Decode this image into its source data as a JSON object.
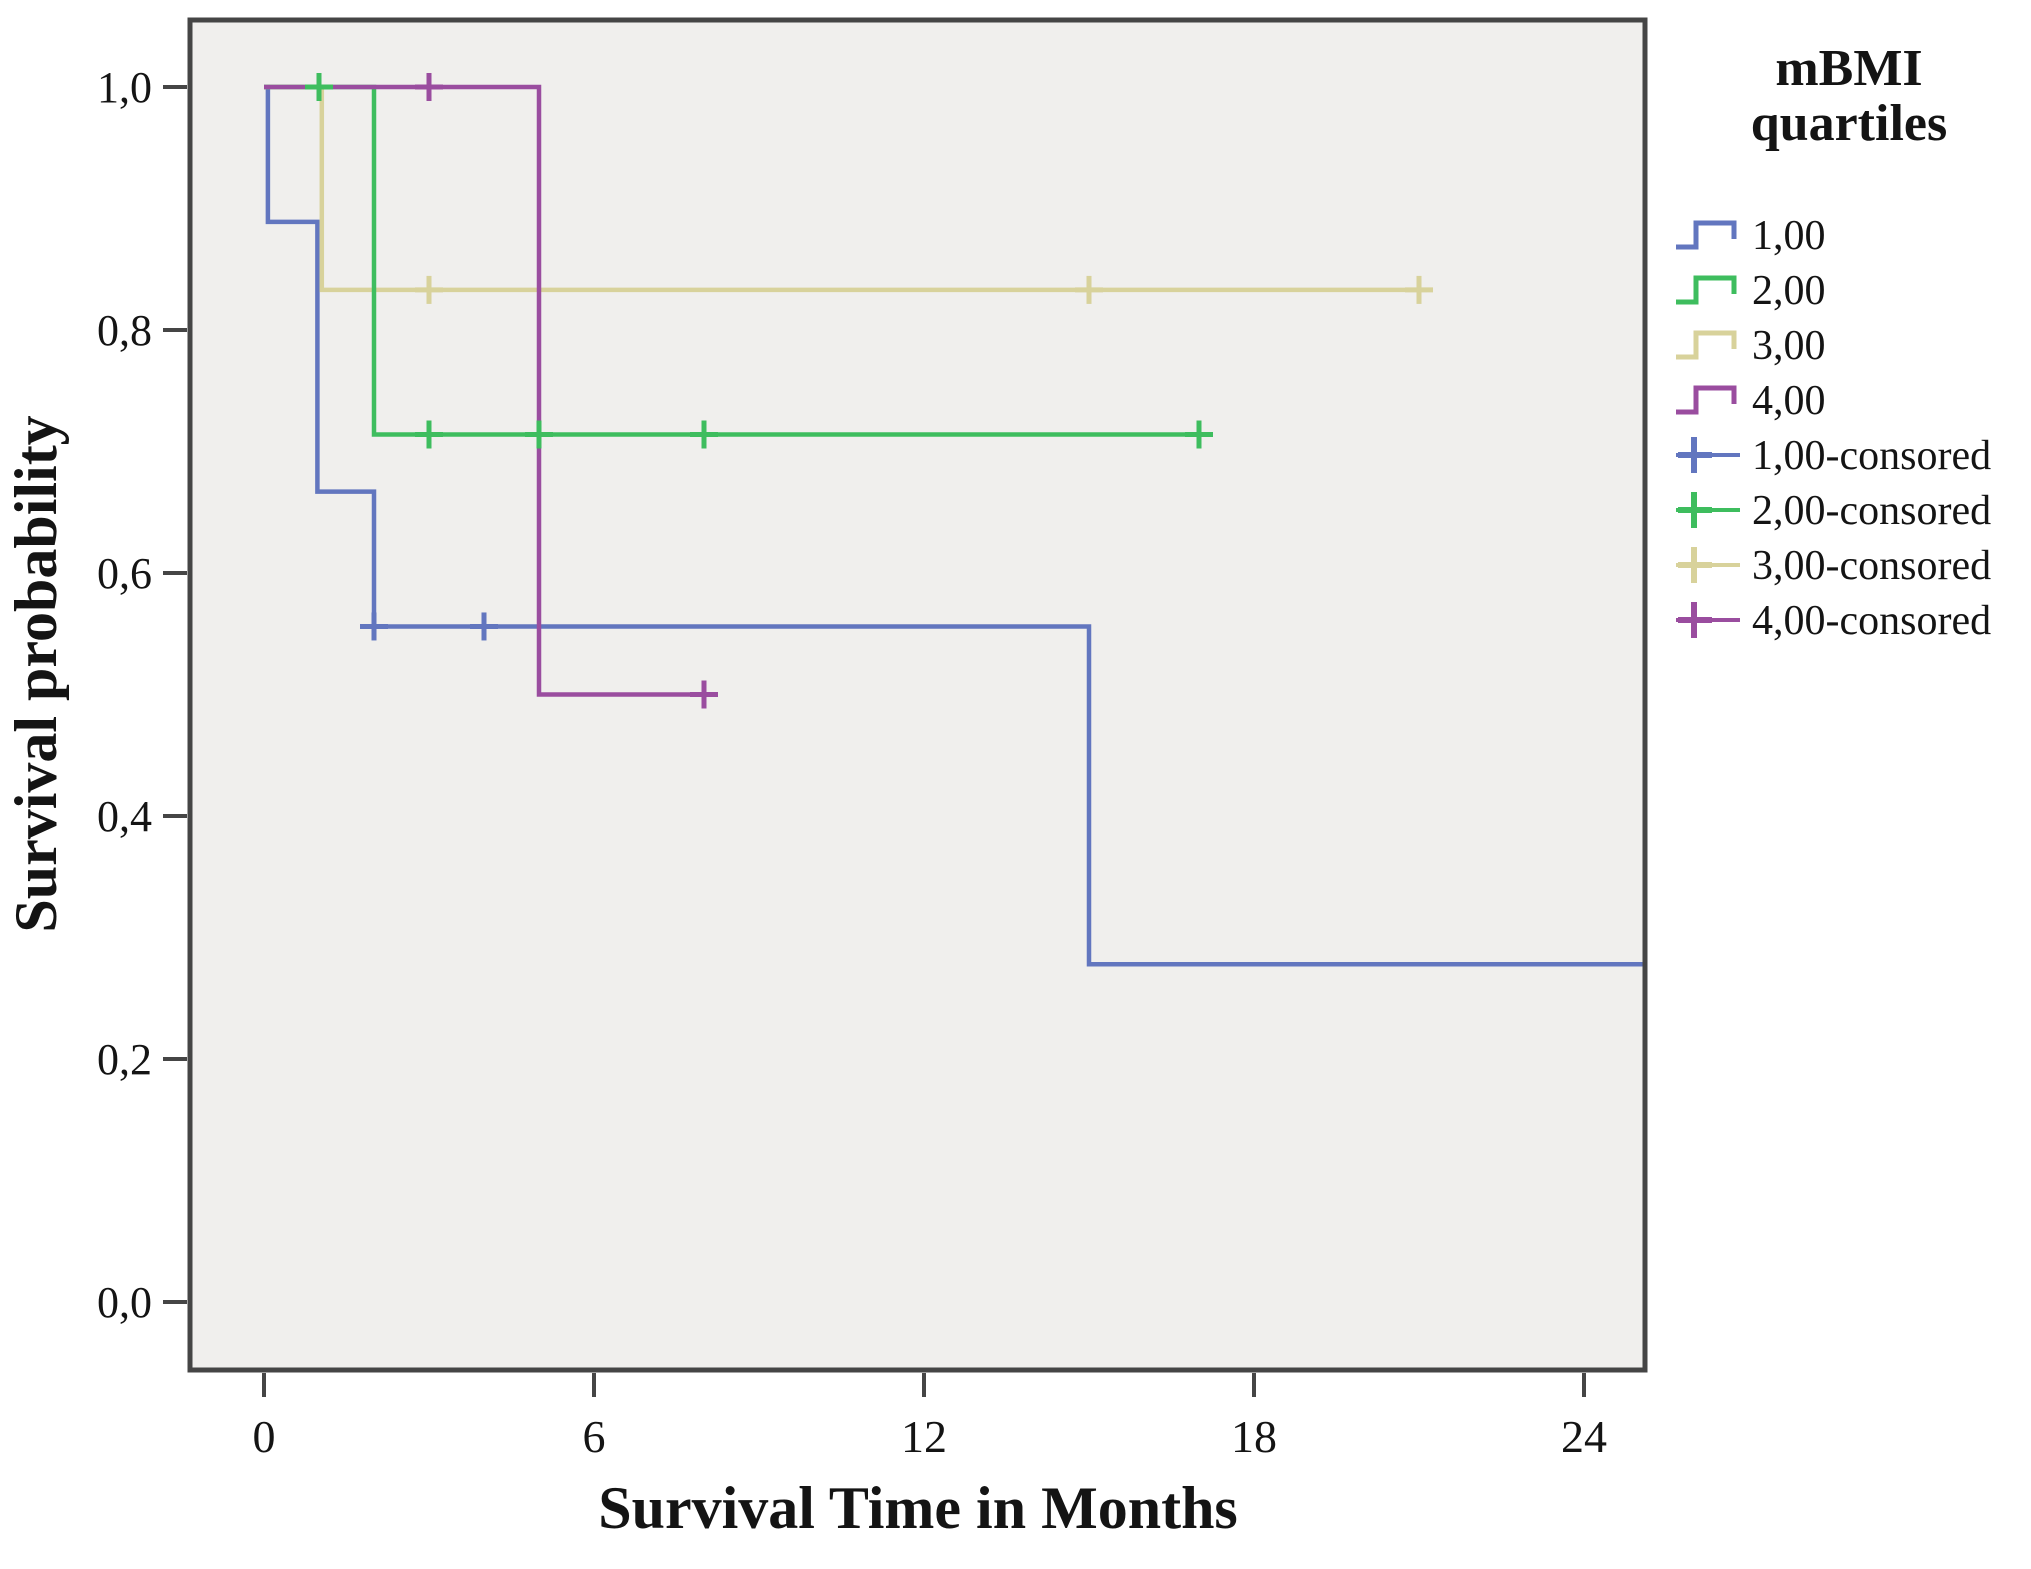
{
  "chart_data": {
    "type": "line",
    "subtype": "kaplan-meier-step-survival",
    "title": "",
    "xlabel": "Survival Time in Months",
    "ylabel": "Survival probability",
    "grid": false,
    "legend_position": "right",
    "x_axis": {
      "range": [
        -1.35,
        25.1
      ],
      "ticks": [
        {
          "value": 0,
          "label": "0"
        },
        {
          "value": 6,
          "label": "6"
        },
        {
          "value": 12,
          "label": "12"
        },
        {
          "value": 18,
          "label": "18"
        },
        {
          "value": 24,
          "label": "24"
        }
      ]
    },
    "y_axis": {
      "range": [
        -0.056,
        1.056
      ],
      "ticks": [
        {
          "value": 0.0,
          "label": "0,0"
        },
        {
          "value": 0.2,
          "label": "0,2"
        },
        {
          "value": 0.4,
          "label": "0,4"
        },
        {
          "value": 0.6,
          "label": "0,6"
        },
        {
          "value": 0.8,
          "label": "0,8"
        },
        {
          "value": 1.0,
          "label": "1,0"
        }
      ]
    },
    "colors": {
      "plot_background": "#f0efed",
      "frame": "#454545",
      "tick": "#454545",
      "text": "#141414"
    },
    "series": [
      {
        "name": "1,00",
        "color": "#6276bf",
        "points": [
          [
            0,
            1.0
          ],
          [
            0.07,
            1.0
          ],
          [
            0.07,
            0.889
          ],
          [
            0.97,
            0.889
          ],
          [
            0.97,
            0.667
          ],
          [
            2,
            0.667
          ],
          [
            2,
            0.556
          ],
          [
            15,
            0.556
          ],
          [
            15,
            0.278
          ],
          [
            25.1,
            0.278
          ]
        ],
        "censored": [
          [
            2,
            0.556
          ],
          [
            4,
            0.556
          ]
        ]
      },
      {
        "name": "3,00",
        "color": "#d8d29b",
        "points": [
          [
            0,
            1.0
          ],
          [
            1.05,
            1.0
          ],
          [
            1.05,
            0.833
          ],
          [
            21.15,
            0.833
          ]
        ],
        "censored": [
          [
            3,
            0.833
          ],
          [
            15,
            0.833
          ],
          [
            21,
            0.833
          ]
        ]
      },
      {
        "name": "2,00",
        "color": "#3ebd5e",
        "points": [
          [
            0,
            1.0
          ],
          [
            2,
            1.0
          ],
          [
            2,
            0.714
          ],
          [
            17.15,
            0.714
          ]
        ],
        "censored": [
          [
            1,
            1.0
          ],
          [
            3,
            0.714
          ],
          [
            5,
            0.714
          ],
          [
            8,
            0.714
          ],
          [
            17,
            0.714
          ]
        ]
      },
      {
        "name": "4,00",
        "color": "#9a4d9f",
        "points": [
          [
            0,
            1.0
          ],
          [
            5,
            1.0
          ],
          [
            5,
            0.5
          ],
          [
            8.15,
            0.5
          ]
        ],
        "censored": [
          [
            3,
            1.0
          ],
          [
            8,
            0.5
          ]
        ]
      }
    ],
    "legend": {
      "title_line1": "mBMI",
      "title_line2": "quartiles",
      "entries": [
        {
          "label": "1,00",
          "type": "step",
          "color": "#6276bf"
        },
        {
          "label": "2,00",
          "type": "step",
          "color": "#3ebd5e"
        },
        {
          "label": "3,00",
          "type": "step",
          "color": "#d8d29b"
        },
        {
          "label": "4,00",
          "type": "step",
          "color": "#9a4d9f"
        },
        {
          "label": "1,00-consored",
          "type": "censored",
          "color": "#6276bf"
        },
        {
          "label": "2,00-consored",
          "type": "censored",
          "color": "#3ebd5e"
        },
        {
          "label": "3,00-consored",
          "type": "censored",
          "color": "#d8d29b"
        },
        {
          "label": "4,00-consored",
          "type": "censored",
          "color": "#9a4d9f"
        }
      ]
    }
  }
}
